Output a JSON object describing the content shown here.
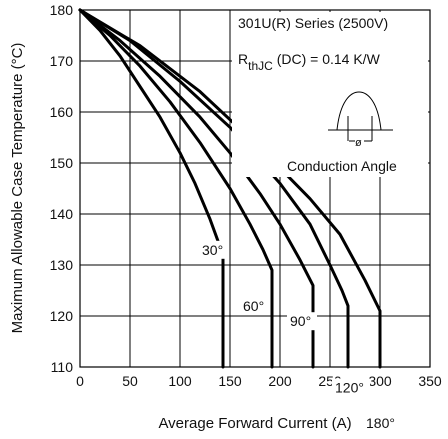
{
  "chart_data": {
    "type": "line",
    "title": "",
    "xlabel": "Average Forward Current (A)",
    "ylabel": "Maximum Allowable Case Temperature (°C)",
    "xlim": [
      0,
      350
    ],
    "ylim": [
      110,
      180
    ],
    "x_ticks": [
      0,
      50,
      100,
      150,
      200,
      250,
      300,
      350
    ],
    "y_ticks": [
      110,
      120,
      130,
      140,
      150,
      160,
      170,
      180
    ],
    "grid": true,
    "annotations": {
      "series_line": "301U(R) Series (2500V)",
      "rth_symbol": "R",
      "rth_subscript": "thJC",
      "rth_rest": " (DC) = 0.14 K/W",
      "inset_label": "Conduction Angle"
    },
    "series": [
      {
        "name": "30°",
        "label_at": [
          122,
          132
        ],
        "points": [
          [
            0,
            180
          ],
          [
            20,
            176
          ],
          [
            40,
            171
          ],
          [
            60,
            165
          ],
          [
            80,
            159
          ],
          [
            100,
            152
          ],
          [
            115,
            146
          ],
          [
            130,
            139
          ],
          [
            143,
            132
          ],
          [
            143,
            110
          ]
        ]
      },
      {
        "name": "60°",
        "label_at": [
          163,
          121
        ],
        "points": [
          [
            0,
            180
          ],
          [
            30,
            175
          ],
          [
            60,
            169
          ],
          [
            90,
            162
          ],
          [
            120,
            154
          ],
          [
            150,
            145
          ],
          [
            170,
            138
          ],
          [
            183,
            133
          ],
          [
            192,
            129
          ],
          [
            192,
            110
          ]
        ]
      },
      {
        "name": "90°",
        "label_at": [
          210,
          118
        ],
        "points": [
          [
            0,
            180
          ],
          [
            40,
            174
          ],
          [
            80,
            167
          ],
          [
            120,
            159
          ],
          [
            150,
            152
          ],
          [
            180,
            144
          ],
          [
            200,
            138
          ],
          [
            220,
            131
          ],
          [
            233,
            126
          ],
          [
            233,
            110
          ]
        ]
      },
      {
        "name": "120°",
        "label_at": [
          255,
          105
        ],
        "points": [
          [
            0,
            180
          ],
          [
            50,
            174
          ],
          [
            100,
            166
          ],
          [
            150,
            157
          ],
          [
            200,
            146
          ],
          [
            230,
            138
          ],
          [
            250,
            130
          ],
          [
            262,
            125
          ],
          [
            268,
            122
          ],
          [
            268,
            110
          ]
        ]
      },
      {
        "name": "180°",
        "label_at": [
          286,
          98
        ],
        "points": [
          [
            0,
            180
          ],
          [
            60,
            173
          ],
          [
            120,
            164
          ],
          [
            180,
            153
          ],
          [
            230,
            143
          ],
          [
            260,
            136
          ],
          [
            285,
            127
          ],
          [
            300,
            121
          ],
          [
            300,
            110
          ]
        ]
      }
    ]
  }
}
